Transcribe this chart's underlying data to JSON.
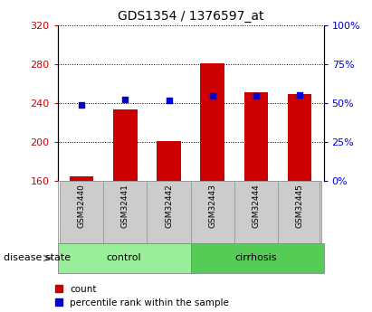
{
  "title": "GDS1354 / 1376597_at",
  "samples": [
    "GSM32440",
    "GSM32441",
    "GSM32442",
    "GSM32443",
    "GSM32444",
    "GSM32445"
  ],
  "counts": [
    165,
    233,
    201,
    281,
    251,
    249
  ],
  "percentile_values": [
    238,
    244,
    243,
    247,
    247,
    248
  ],
  "y_min": 160,
  "y_max": 320,
  "y_ticks": [
    160,
    200,
    240,
    280,
    320
  ],
  "y2_ticks": [
    0,
    25,
    50,
    75,
    100
  ],
  "bar_color": "#cc0000",
  "dot_color": "#0000cc",
  "label_bg_color": "#cccccc",
  "control_color": "#99ee99",
  "cirrhosis_color": "#55cc55",
  "legend_count_label": "count",
  "legend_pct_label": "percentile rank within the sample",
  "fig_width": 4.11,
  "fig_height": 3.45,
  "dpi": 100
}
